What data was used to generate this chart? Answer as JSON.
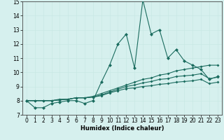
{
  "xlabel": "Humidex (Indice chaleur)",
  "ylabel": "",
  "background_color": "#d6f0ee",
  "line_color": "#1a6b5e",
  "grid_color": "#c8e8e4",
  "xlim": [
    -0.5,
    23.5
  ],
  "ylim": [
    7,
    15
  ],
  "yticks": [
    7,
    8,
    9,
    10,
    11,
    12,
    13,
    14,
    15
  ],
  "xticks": [
    0,
    1,
    2,
    3,
    4,
    5,
    6,
    7,
    8,
    9,
    10,
    11,
    12,
    13,
    14,
    15,
    16,
    17,
    18,
    19,
    20,
    21,
    22,
    23
  ],
  "series": [
    [
      8.0,
      7.5,
      7.5,
      7.8,
      7.9,
      8.0,
      8.0,
      7.8,
      8.0,
      9.3,
      10.5,
      12.0,
      12.7,
      10.3,
      15.1,
      12.7,
      13.0,
      11.0,
      11.6,
      10.8,
      10.5,
      10.2,
      9.5,
      9.7
    ],
    [
      8.0,
      8.0,
      8.0,
      8.0,
      8.1,
      8.1,
      8.2,
      8.2,
      8.3,
      8.5,
      8.7,
      8.9,
      9.1,
      9.3,
      9.5,
      9.6,
      9.8,
      9.9,
      10.1,
      10.2,
      10.3,
      10.4,
      10.5,
      10.5
    ],
    [
      8.0,
      8.0,
      8.0,
      8.0,
      8.05,
      8.1,
      8.2,
      8.2,
      8.25,
      8.4,
      8.6,
      8.8,
      9.0,
      9.1,
      9.25,
      9.35,
      9.5,
      9.55,
      9.7,
      9.75,
      9.8,
      9.9,
      9.55,
      9.65
    ],
    [
      8.0,
      8.0,
      8.0,
      8.0,
      8.05,
      8.1,
      8.2,
      8.2,
      8.25,
      8.35,
      8.55,
      8.7,
      8.85,
      8.9,
      9.0,
      9.05,
      9.15,
      9.2,
      9.3,
      9.35,
      9.4,
      9.5,
      9.2,
      9.3
    ]
  ],
  "xlabel_fontsize": 6.0,
  "tick_fontsize": 5.5,
  "marker_size_main": 2.5,
  "marker_size_trend": 2.0,
  "linewidth": 0.8
}
